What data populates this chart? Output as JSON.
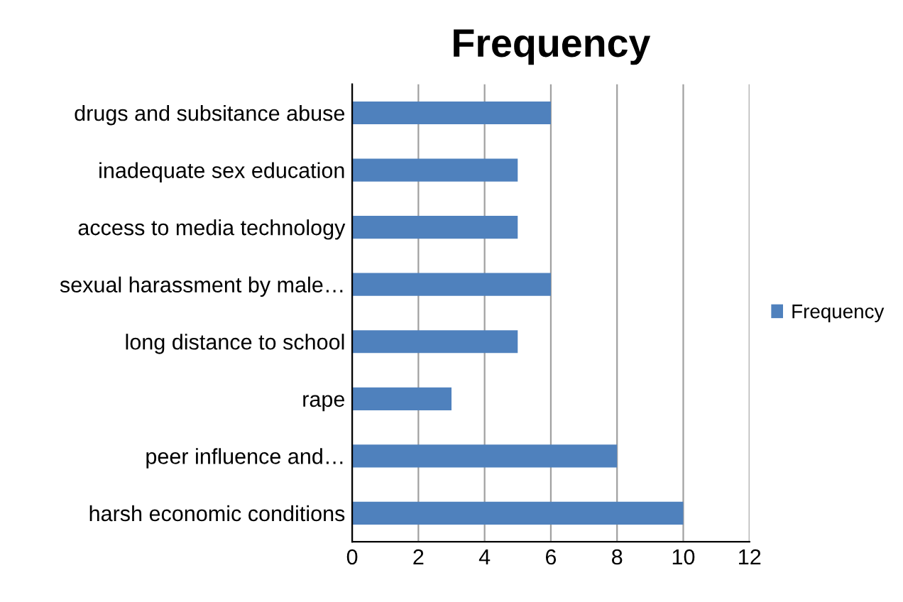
{
  "chart_data": {
    "type": "bar",
    "title": "Frequency",
    "orientation": "horizontal",
    "categories": [
      "drugs and subsitance abuse",
      "inadequate sex education",
      "access to media technology",
      "sexual harassment by male…",
      "long distance to school",
      "rape",
      "peer influence and…",
      "harsh economic conditions"
    ],
    "series": [
      {
        "name": "Frequency",
        "color": "#4f81bd",
        "values": [
          6,
          5,
          5,
          6,
          5,
          3,
          8,
          10
        ]
      }
    ],
    "xlim": [
      0,
      12
    ],
    "xticks": [
      0,
      2,
      4,
      6,
      8,
      10,
      12
    ],
    "grid": "x",
    "legend": "right"
  }
}
